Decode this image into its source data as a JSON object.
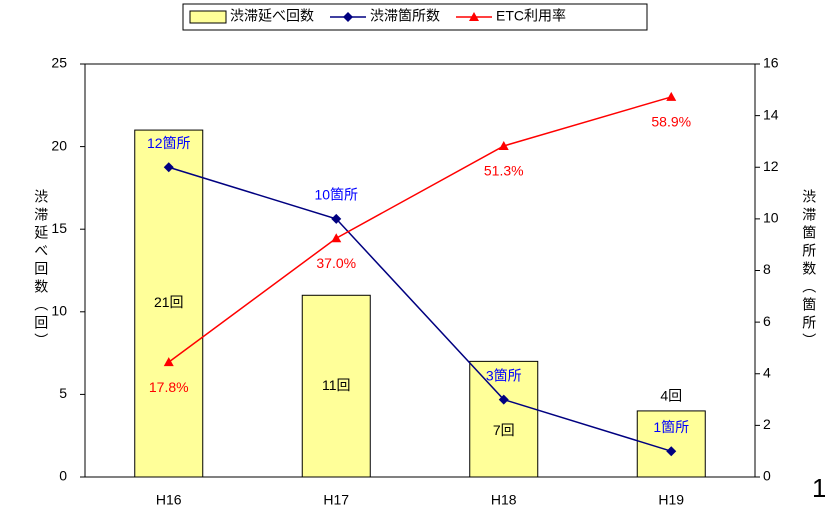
{
  "chart_data": {
    "type": "bar_line",
    "categories": [
      "H16",
      "H17",
      "H18",
      "H19"
    ],
    "series": [
      {
        "name": "渋滞延べ回数",
        "type": "bar",
        "color": "#ffff99",
        "axis": "y",
        "values": [
          21,
          11,
          7,
          4
        ],
        "value_labels": [
          "21回",
          "11回",
          "7回",
          "4回"
        ]
      },
      {
        "name": "渋滞箇所数",
        "type": "line",
        "marker": "diamond",
        "color": "#000080",
        "axis": "y2",
        "values": [
          12,
          10,
          3,
          1
        ],
        "value_labels": [
          "12箇所",
          "10箇所",
          "3箇所",
          "1箇所"
        ]
      },
      {
        "name": "ETC利用率",
        "type": "line",
        "marker": "triangle",
        "color": "#ff0000",
        "axis": "y3",
        "values": [
          17.8,
          37.0,
          51.3,
          58.9
        ],
        "value_labels": [
          "17.8%",
          "37.0%",
          "51.3%",
          "58.9%"
        ]
      }
    ],
    "ylabel": "渋滞延べ回数（回）",
    "y2label": "渋滞箇所数（箇所）",
    "ylim": [
      0,
      25
    ],
    "yticks": [
      0,
      5,
      10,
      15,
      20,
      25
    ],
    "y2lim": [
      0,
      16
    ],
    "y2ticks": [
      0,
      2,
      4,
      6,
      8,
      10,
      12,
      14,
      16
    ],
    "y3lim": [
      0,
      64
    ],
    "legend": "top"
  },
  "page_number": "1"
}
